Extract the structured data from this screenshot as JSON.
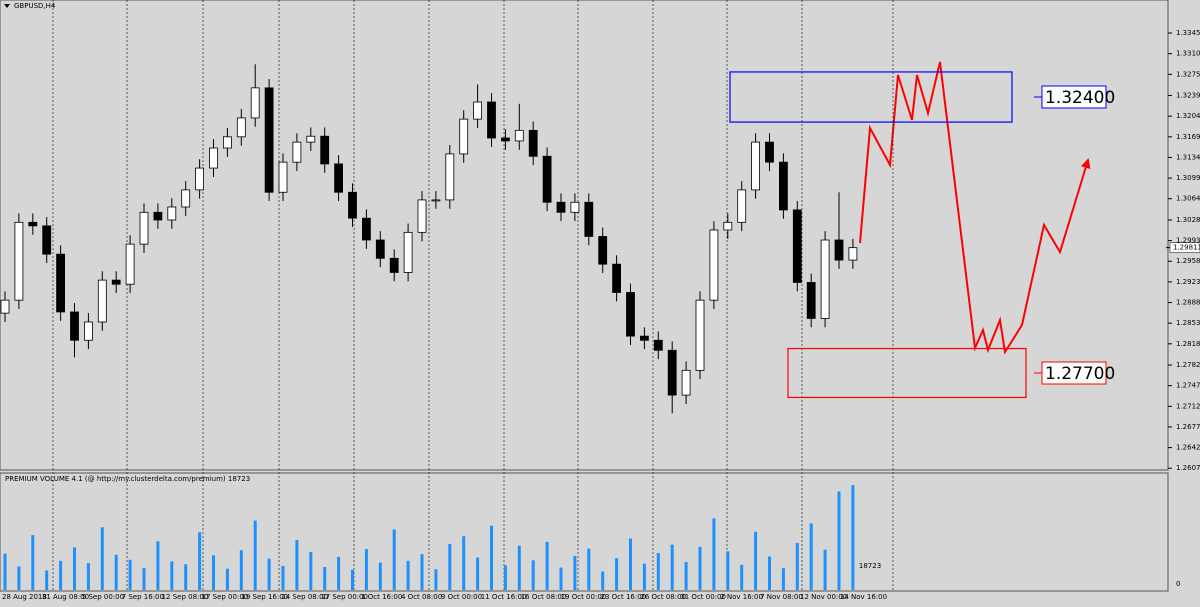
{
  "chart_data": {
    "type": "candlestick",
    "title": "GBPUSD,H4",
    "x_labels": [
      "28 Aug 2018",
      "31 Aug 08:00",
      "5 Sep 00:00",
      "7 Sep 16:00",
      "12 Sep 08:00",
      "17 Sep 00:00",
      "19 Sep 16:00",
      "24 Sep 08:00",
      "27 Sep 00:00",
      "1 Oct 16:00",
      "4 Oct 08:00",
      "9 Oct 00:00",
      "11 Oct 16:00",
      "16 Oct 08:00",
      "19 Oct 00:00",
      "23 Oct 16:00",
      "26 Oct 08:00",
      "31 Oct 00:00",
      "2 Nov 16:00",
      "7 Nov 08:00",
      "12 Nov 00:00",
      "14 Nov 16:00"
    ],
    "open": [
      1.287,
      1.2892,
      1.3024,
      1.3018,
      1.297,
      1.2872,
      1.2824,
      1.2855,
      1.2926,
      1.2919,
      1.2987,
      1.3041,
      1.3028,
      1.305,
      1.3079,
      1.3116,
      1.315,
      1.3169,
      1.3201,
      1.3252,
      1.3075,
      1.3126,
      1.316,
      1.317,
      1.3123,
      1.3075,
      1.3031,
      1.2994,
      1.2963,
      1.2939,
      1.3007,
      1.3062,
      1.3062,
      1.314,
      1.3199,
      1.3228,
      1.3167,
      1.3162,
      1.318,
      1.3136,
      1.3058,
      1.3041,
      1.3058,
      1.3,
      1.2953,
      1.2905,
      1.2831,
      1.2824,
      1.2807,
      1.2731,
      1.2773,
      1.2892,
      1.3011,
      1.3024,
      1.3079,
      1.316,
      1.3126,
      1.3045,
      1.2922,
      1.2861,
      1.2994,
      1.296
    ],
    "high": [
      1.2907,
      1.3039,
      1.3039,
      1.3033,
      1.2985,
      1.2887,
      1.287,
      1.2941,
      1.2941,
      1.3002,
      1.3056,
      1.3056,
      1.3065,
      1.3094,
      1.3131,
      1.3165,
      1.3184,
      1.3216,
      1.3292,
      1.3267,
      1.3141,
      1.3175,
      1.3185,
      1.3185,
      1.3138,
      1.309,
      1.3046,
      1.3009,
      1.2978,
      1.3022,
      1.3077,
      1.3077,
      1.3155,
      1.3214,
      1.3258,
      1.3243,
      1.3182,
      1.3225,
      1.3195,
      1.3151,
      1.3073,
      1.3073,
      1.3073,
      1.3015,
      1.2968,
      1.292,
      1.2846,
      1.2839,
      1.2822,
      1.2788,
      1.2907,
      1.3026,
      1.3039,
      1.3094,
      1.3175,
      1.3175,
      1.3141,
      1.306,
      1.2937,
      1.3009,
      1.3075,
      1.2996
    ],
    "low": [
      1.2855,
      1.2877,
      1.3003,
      1.2955,
      1.2857,
      1.2795,
      1.2809,
      1.284,
      1.2904,
      1.2904,
      1.2972,
      1.3013,
      1.3013,
      1.3035,
      1.3064,
      1.3101,
      1.3135,
      1.3154,
      1.3186,
      1.306,
      1.306,
      1.3111,
      1.3145,
      1.3108,
      1.306,
      1.3016,
      1.2979,
      1.2948,
      1.2924,
      1.2924,
      1.2992,
      1.3047,
      1.3047,
      1.3125,
      1.3184,
      1.3152,
      1.3147,
      1.3147,
      1.3121,
      1.3043,
      1.3026,
      1.3026,
      1.2985,
      1.2938,
      1.289,
      1.2816,
      1.2809,
      1.2792,
      1.27,
      1.2716,
      1.2758,
      1.2877,
      1.2996,
      1.3009,
      1.3064,
      1.3111,
      1.303,
      1.2907,
      1.2846,
      1.2846,
      1.2945,
      1.2945
    ],
    "close": [
      1.2892,
      1.3024,
      1.3018,
      1.297,
      1.2872,
      1.2824,
      1.2855,
      1.2926,
      1.2919,
      1.2987,
      1.3041,
      1.3028,
      1.305,
      1.3079,
      1.3116,
      1.315,
      1.3169,
      1.3201,
      1.3252,
      1.3075,
      1.3126,
      1.316,
      1.317,
      1.3123,
      1.3075,
      1.3031,
      1.2994,
      1.2963,
      1.2939,
      1.3007,
      1.3062,
      1.3062,
      1.314,
      1.3199,
      1.3228,
      1.3167,
      1.3162,
      1.318,
      1.3136,
      1.3058,
      1.3041,
      1.3058,
      1.3,
      1.2953,
      1.2905,
      1.2831,
      1.2824,
      1.2807,
      1.2731,
      1.2773,
      1.2892,
      1.3011,
      1.3024,
      1.3079,
      1.316,
      1.3126,
      1.3045,
      1.2922,
      1.2861,
      1.2994,
      1.296,
      1.2981
    ],
    "last_price": 1.29811,
    "ylim": [
      1.2604,
      1.3401
    ],
    "yticks": [
      {
        "value": 1.3345,
        "label": "1.33450"
      },
      {
        "value": 1.331,
        "label": "1.33100"
      },
      {
        "value": 1.3275,
        "label": "1.32750"
      },
      {
        "value": 1.3239,
        "label": "1.32390"
      },
      {
        "value": 1.3204,
        "label": "1.32040"
      },
      {
        "value": 1.3169,
        "label": "1.31690"
      },
      {
        "value": 1.3134,
        "label": "1.31340"
      },
      {
        "value": 1.3099,
        "label": "1.30990"
      },
      {
        "value": 1.3064,
        "label": "1.30640"
      },
      {
        "value": 1.3028,
        "label": "1.30280"
      },
      {
        "value": 1.2993,
        "label": "1.29930"
      },
      {
        "value": 1.2958,
        "label": "1.29580"
      },
      {
        "value": 1.2923,
        "label": "1.29230"
      },
      {
        "value": 1.2888,
        "label": "1.28880"
      },
      {
        "value": 1.2853,
        "label": "1.28530"
      },
      {
        "value": 1.2818,
        "label": "1.28180"
      },
      {
        "value": 1.2782,
        "label": "1.27820"
      },
      {
        "value": 1.2747,
        "label": "1.27470"
      },
      {
        "value": 1.2712,
        "label": "1.27120"
      },
      {
        "value": 1.2677,
        "label": "1.26770"
      },
      {
        "value": 1.2642,
        "label": "1.26420"
      },
      {
        "value": 1.2607,
        "label": "1.26070"
      }
    ],
    "zones": [
      {
        "label": "1.32400",
        "color": "#0000ff",
        "top": 1.3279,
        "bottom": 1.3194
      },
      {
        "label": "1.27700",
        "color": "#ff0000",
        "top": 1.281,
        "bottom": 1.2727
      }
    ],
    "volume": {
      "title": "PREMIUM VOLUME 4.1 (@ http://my.clusterdelta.com/premium) 18723",
      "color": "#1e90ff",
      "values": [
        6500,
        4200,
        9800,
        3500,
        5200,
        7600,
        4800,
        11200,
        6300,
        5400,
        3900,
        8700,
        5100,
        4600,
        10300,
        6200,
        3800,
        7100,
        12400,
        5600,
        4300,
        8900,
        6800,
        4100,
        5900,
        3600,
        7300,
        4900,
        10800,
        5200,
        6400,
        3700,
        8200,
        9600,
        5800,
        11500,
        4400,
        7900,
        5300,
        8600,
        4000,
        6100,
        7400,
        3300,
        5700,
        9200,
        4700,
        6600,
        8100,
        5000,
        7700,
        12800,
        6900,
        4500,
        10400,
        6000,
        3900,
        8400,
        11900,
        7200,
        17600,
        18723
      ],
      "ylim": [
        0,
        20000
      ],
      "yticks": [
        0
      ]
    }
  }
}
